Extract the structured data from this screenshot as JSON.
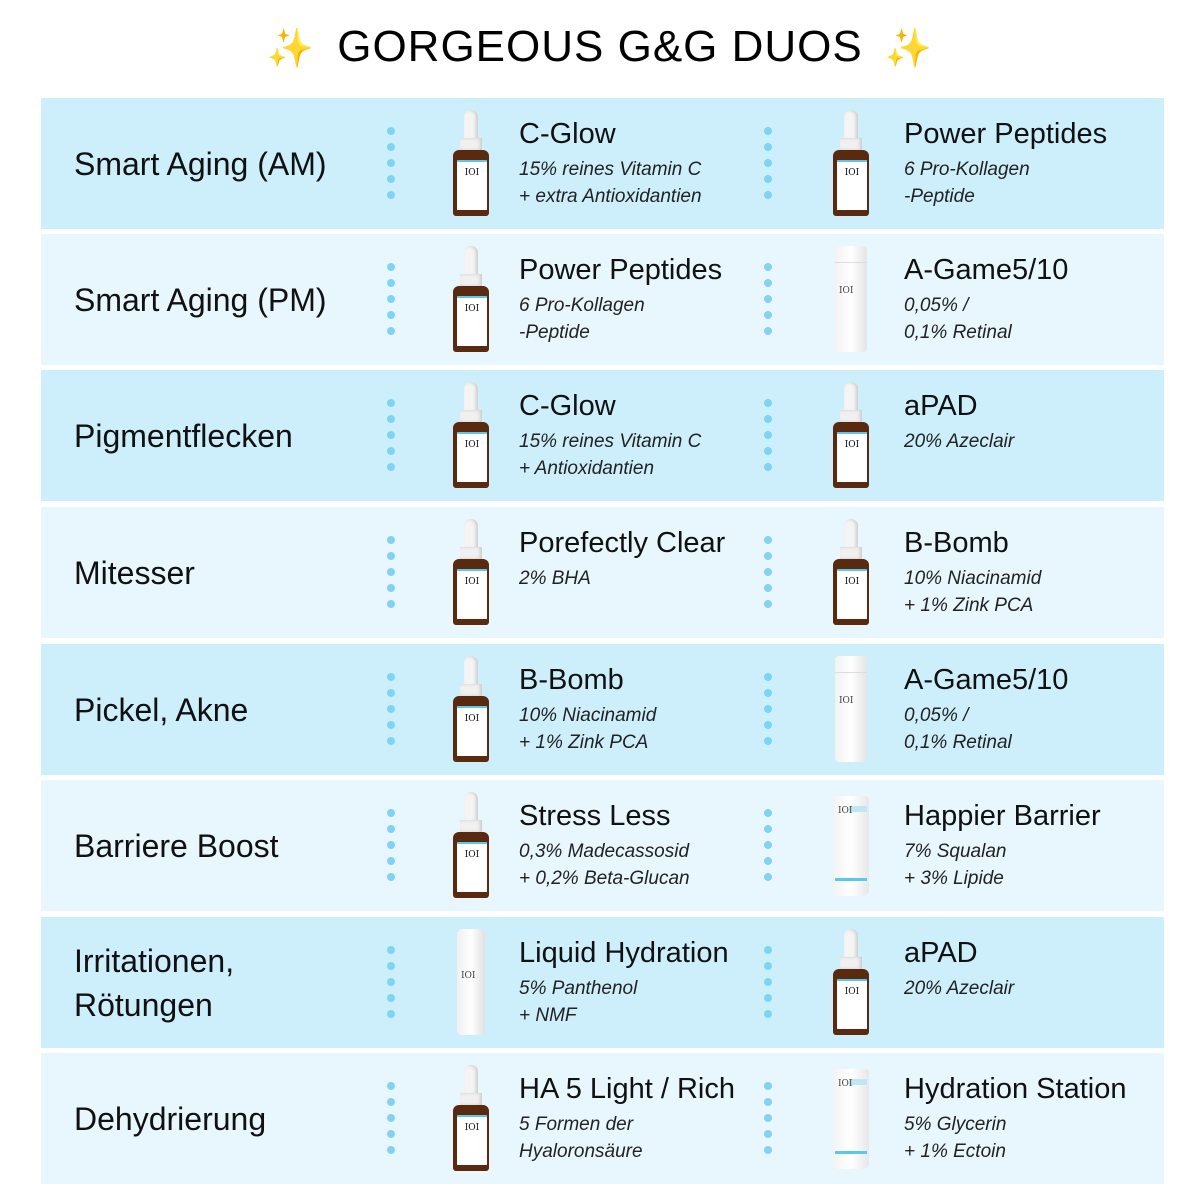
{
  "title": {
    "text": "GORGEOUS G&G DUOS",
    "sparkle": "✨"
  },
  "colors": {
    "row_dark": "#cdeffb",
    "row_light": "#e8f7fd",
    "dots": "#7fd3f5",
    "sparkle": "#f5c518"
  },
  "brand_mark": "IOI",
  "rows": [
    {
      "condition": "Smart Aging (AM)",
      "products": [
        {
          "name": "C-Glow",
          "desc": "15% reines Vitamin C\n+ extra Antioxidantien",
          "icon": "dropper-bottle"
        },
        {
          "name": "Power Peptides",
          "desc": "6 Pro-Kollagen\n-Peptide",
          "icon": "dropper-bottle"
        }
      ]
    },
    {
      "condition": "Smart Aging (PM)",
      "products": [
        {
          "name": "Power Peptides",
          "desc": "6 Pro-Kollagen\n-Peptide",
          "icon": "dropper-bottle"
        },
        {
          "name": "A-Game5/10",
          "desc": "0,05% /\n0,1% Retinal",
          "icon": "pump-bottle"
        }
      ]
    },
    {
      "condition": "Pigmentflecken",
      "products": [
        {
          "name": "C-Glow",
          "desc": "15% reines Vitamin C\n+ Antioxidantien",
          "icon": "dropper-bottle"
        },
        {
          "name": "aPAD",
          "desc": "20% Azeclair",
          "icon": "dropper-bottle"
        }
      ]
    },
    {
      "condition": "Mitesser",
      "products": [
        {
          "name": "Porefectly Clear",
          "desc": "2% BHA",
          "icon": "dropper-bottle"
        },
        {
          "name": "B-Bomb",
          "desc": "10% Niacinamid\n+ 1% Zink PCA",
          "icon": "dropper-bottle"
        }
      ]
    },
    {
      "condition": "Pickel, Akne",
      "products": [
        {
          "name": "B-Bomb",
          "desc": "10% Niacinamid\n+ 1% Zink PCA",
          "icon": "dropper-bottle"
        },
        {
          "name": "A-Game5/10",
          "desc": "0,05% /\n0,1% Retinal",
          "icon": "pump-bottle"
        }
      ]
    },
    {
      "condition": "Barriere Boost",
      "products": [
        {
          "name": "Stress Less",
          "desc": "0,3% Madecassosid\n+ 0,2% Beta-Glucan",
          "icon": "dropper-bottle"
        },
        {
          "name": "Happier Barrier",
          "desc": "7% Squalan\n+ 3% Lipide",
          "icon": "tube"
        }
      ]
    },
    {
      "condition": "Irritationen,\nRötungen",
      "products": [
        {
          "name": "Liquid Hydration",
          "desc": "5% Panthenol\n+ NMF",
          "icon": "spray-bottle"
        },
        {
          "name": "aPAD",
          "desc": "20% Azeclair",
          "icon": "dropper-bottle"
        }
      ]
    },
    {
      "condition": "Dehydrierung",
      "products": [
        {
          "name": "HA 5 Light / Rich",
          "desc": "5 Formen der\nHyaloronsäure",
          "icon": "dropper-bottle"
        },
        {
          "name": "Hydration Station",
          "desc": "5% Glycerin\n+ 1% Ectoin",
          "icon": "tube"
        }
      ]
    }
  ]
}
